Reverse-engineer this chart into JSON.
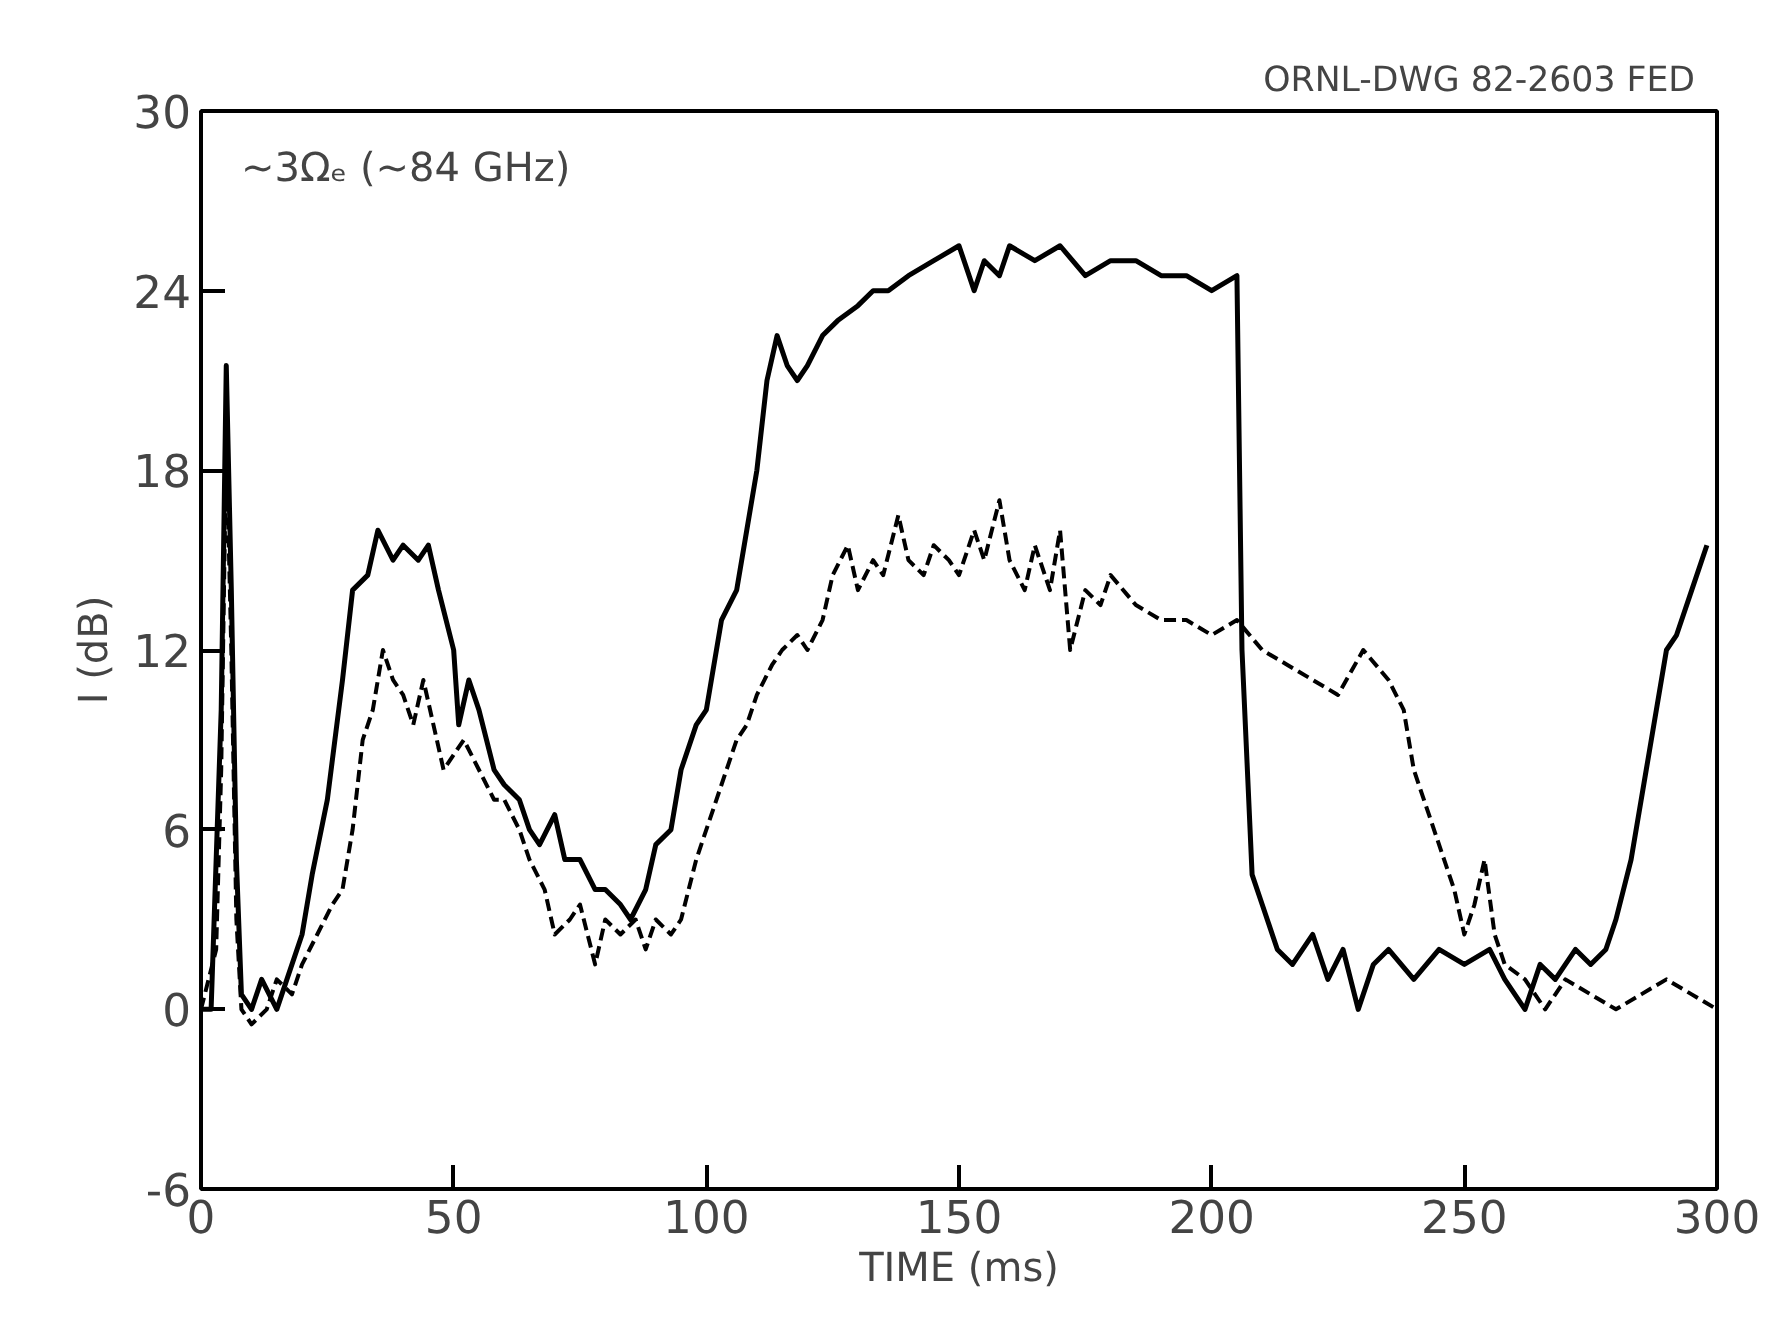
{
  "chart_data": {
    "type": "line",
    "xlabel": "TIME (ms)",
    "ylabel": "I (dB)",
    "annotations": [
      "ORNL-DWG 82-2603   FED",
      "~3Ωₑ (~84 GHz)"
    ],
    "xlim": [
      0,
      300
    ],
    "ylim": [
      -6,
      30
    ],
    "xticks": [
      0,
      50,
      100,
      150,
      200,
      250,
      300
    ],
    "yticks": [
      -6,
      0,
      6,
      12,
      18,
      24,
      30
    ],
    "grid": false,
    "series": [
      {
        "color": "#000000",
        "line_style": "solid",
        "x": [
          0,
          2,
          4,
          5,
          6,
          7,
          8,
          10,
          12,
          15,
          17,
          20,
          22,
          25,
          28,
          30,
          33,
          35,
          38,
          40,
          43,
          45,
          47,
          50,
          51,
          53,
          55,
          58,
          60,
          63,
          65,
          67,
          70,
          72,
          75,
          78,
          80,
          83,
          85,
          88,
          90,
          93,
          95,
          98,
          100,
          103,
          106,
          108,
          110,
          112,
          114,
          116,
          118,
          120,
          123,
          126,
          130,
          133,
          136,
          140,
          145,
          150,
          153,
          155,
          158,
          160,
          165,
          170,
          175,
          180,
          185,
          190,
          195,
          200,
          205,
          206,
          208,
          210,
          213,
          216,
          220,
          223,
          226,
          229,
          232,
          235,
          240,
          245,
          250,
          255,
          258,
          262,
          265,
          268,
          272,
          275,
          278,
          280,
          283,
          286,
          288,
          290,
          292,
          295,
          298
        ],
        "values": [
          0,
          0,
          10,
          21.5,
          14,
          5,
          0.5,
          0,
          1,
          0,
          1,
          2.5,
          4.5,
          7,
          11,
          14,
          14.5,
          16,
          15,
          15.5,
          15,
          15.5,
          14,
          12,
          9.5,
          11,
          10,
          8,
          7.5,
          7,
          6,
          5.5,
          6.5,
          5,
          5,
          4,
          4,
          3.5,
          3,
          4,
          5.5,
          6,
          8,
          9.5,
          10,
          13,
          14,
          16,
          18,
          21,
          22.5,
          21.5,
          21,
          21.5,
          22.5,
          23,
          23.5,
          24,
          24,
          24.5,
          25,
          25.5,
          24,
          25,
          24.5,
          25.5,
          25,
          25.5,
          24.5,
          25,
          25,
          24.5,
          24.5,
          24,
          24.5,
          12,
          4.5,
          3.5,
          2,
          1.5,
          2.5,
          1,
          2,
          0,
          1.5,
          2,
          1,
          2,
          1.5,
          2,
          1,
          0,
          1.5,
          1,
          2,
          1.5,
          2,
          3,
          5,
          8,
          10,
          12,
          12.5,
          14,
          15.5
        ]
      },
      {
        "color": "#000000",
        "line_style": "dashed",
        "x": [
          0,
          3,
          4,
          5,
          6,
          7,
          8,
          10,
          13,
          15,
          18,
          20,
          23,
          26,
          28,
          30,
          32,
          34,
          36,
          38,
          40,
          42,
          44,
          46,
          48,
          50,
          52,
          55,
          58,
          60,
          63,
          65,
          68,
          70,
          73,
          75,
          78,
          80,
          83,
          86,
          88,
          90,
          93,
          95,
          98,
          100,
          103,
          106,
          108,
          110,
          113,
          115,
          118,
          120,
          123,
          125,
          128,
          130,
          133,
          135,
          138,
          140,
          143,
          145,
          148,
          150,
          153,
          155,
          158,
          160,
          163,
          165,
          168,
          170,
          172,
          175,
          178,
          180,
          185,
          190,
          195,
          200,
          205,
          210,
          215,
          220,
          225,
          230,
          235,
          238,
          240,
          243,
          246,
          248,
          250,
          252,
          254,
          256,
          258,
          262,
          266,
          270,
          275,
          280,
          285,
          290,
          295,
          300
        ],
        "values": [
          0,
          2,
          8,
          19,
          12,
          3,
          0,
          -0.5,
          0,
          1,
          0.5,
          1.5,
          2.5,
          3.5,
          4,
          6,
          9,
          10,
          12,
          11,
          10.5,
          9.5,
          11,
          9.5,
          8,
          8.5,
          9,
          8,
          7,
          7,
          6,
          5,
          4,
          2.5,
          3,
          3.5,
          1.5,
          3,
          2.5,
          3,
          2,
          3,
          2.5,
          3,
          5,
          6,
          7.5,
          9,
          9.5,
          10.5,
          11.5,
          12,
          12.5,
          12,
          13,
          14.5,
          15.5,
          14,
          15,
          14.5,
          16.5,
          15,
          14.5,
          15.5,
          15,
          14.5,
          16,
          15,
          17,
          15,
          14,
          15.5,
          14,
          16,
          12,
          14,
          13.5,
          14.5,
          13.5,
          13,
          13,
          12.5,
          13,
          12,
          11.5,
          11,
          10.5,
          12,
          11,
          10,
          8,
          6.5,
          5,
          4,
          2.5,
          3.5,
          5,
          2.5,
          1.5,
          1,
          0,
          1,
          0.5,
          0,
          0.5,
          1,
          0.5,
          0
        ]
      }
    ]
  }
}
